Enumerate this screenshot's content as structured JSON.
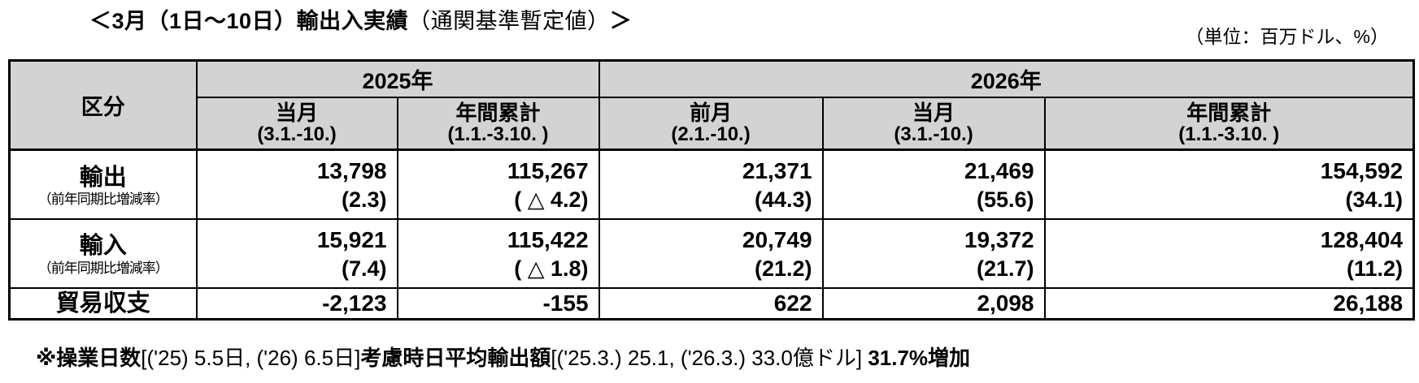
{
  "header": {
    "title_main": "＜3月（1日～10日）輸出入実績",
    "title_paren": "（通関基準暫定値）",
    "title_close": "＞",
    "unit_label": "（単位：百万ドル、%）"
  },
  "table": {
    "corner_label": "区分",
    "year_groups": [
      {
        "label": "2025年"
      },
      {
        "label": "2026年"
      }
    ],
    "columns": [
      {
        "label": "当月",
        "period": "(3.1.-10.)"
      },
      {
        "label": "年間累計",
        "period": "(1.1.-3.10. )"
      },
      {
        "label": "前月",
        "period": "(2.1.-10.)"
      },
      {
        "label": "当月",
        "period": "(3.1.-10.)"
      },
      {
        "label": "年間累計",
        "period": "(1.1.-3.10. )"
      }
    ],
    "rows": [
      {
        "label": "輸出",
        "sublabel": "（前年同期比増減率）",
        "values": [
          "13,798",
          "115,267",
          "21,371",
          "21,469",
          "154,592"
        ],
        "subvalues": [
          "(2.3)",
          "( △ 4.2)",
          "(44.3)",
          "(55.6)",
          "(34.1)"
        ]
      },
      {
        "label": "輸入",
        "sublabel": "（前年同期比増減率）",
        "values": [
          "15,921",
          "115,422",
          "20,749",
          "19,372",
          "128,404"
        ],
        "subvalues": [
          "(7.4)",
          "( △ 1.8)",
          "(21.2)",
          "(21.7)",
          "(11.2)"
        ]
      },
      {
        "label": "貿易収支",
        "values": [
          "-2,123",
          "-155",
          "622",
          "2,098",
          "26,188"
        ]
      }
    ]
  },
  "footnote": {
    "parts": [
      {
        "text": "※操業日数"
      },
      {
        "text": "[('25) 5.5日, ('26) 6.5日]"
      },
      {
        "text": "考慮時日平均輸出額"
      },
      {
        "text": "[('25.3.) 25.1, ('26.3.) 33.0億ドル]"
      },
      {
        "text": " 31.7%増加"
      }
    ]
  }
}
